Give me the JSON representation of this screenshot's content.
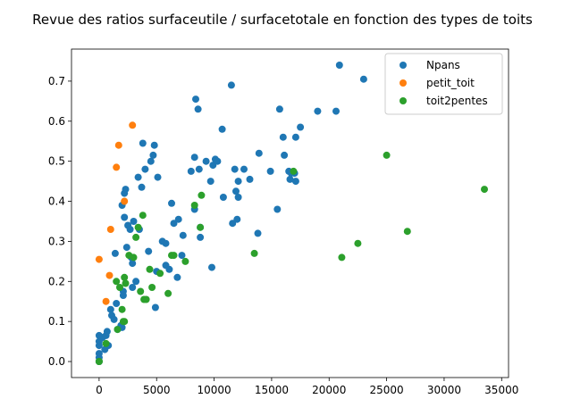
{
  "chart_data": {
    "type": "scatter",
    "title": "Revue des ratios surfaceutile / surfacetotale en fonction des types de toits",
    "xlabel": "",
    "ylabel": "",
    "xlim": [
      -2400,
      35600
    ],
    "ylim": [
      -0.04,
      0.78
    ],
    "x_ticks": [
      0,
      5000,
      10000,
      15000,
      20000,
      25000,
      30000,
      35000
    ],
    "y_ticks": [
      0.0,
      0.1,
      0.2,
      0.3,
      0.4,
      0.5,
      0.6,
      0.7
    ],
    "x_tick_labels": [
      "0",
      "5000",
      "10000",
      "15000",
      "20000",
      "25000",
      "30000",
      "35000"
    ],
    "y_tick_labels": [
      "0.0",
      "0.1",
      "0.2",
      "0.3",
      "0.4",
      "0.5",
      "0.6",
      "0.7"
    ],
    "grid": false,
    "legend_position": "top-right",
    "series": [
      {
        "name": "Npans",
        "color": "#1f77b4",
        "points": [
          [
            0,
            0.0
          ],
          [
            0,
            0.0
          ],
          [
            0,
            0.01
          ],
          [
            0,
            0.02
          ],
          [
            0,
            0.04
          ],
          [
            0,
            0.05
          ],
          [
            0,
            0.065
          ],
          [
            300,
            0.06
          ],
          [
            500,
            0.03
          ],
          [
            600,
            0.065
          ],
          [
            700,
            0.075
          ],
          [
            800,
            0.04
          ],
          [
            1000,
            0.13
          ],
          [
            1100,
            0.115
          ],
          [
            1300,
            0.105
          ],
          [
            1400,
            0.27
          ],
          [
            1500,
            0.145
          ],
          [
            1600,
            0.08
          ],
          [
            1900,
            0.09
          ],
          [
            2000,
            0.085
          ],
          [
            2000,
            0.39
          ],
          [
            2100,
            0.175
          ],
          [
            2100,
            0.165
          ],
          [
            2200,
            0.42
          ],
          [
            2200,
            0.36
          ],
          [
            2300,
            0.43
          ],
          [
            2400,
            0.285
          ],
          [
            2500,
            0.34
          ],
          [
            2700,
            0.33
          ],
          [
            2800,
            0.26
          ],
          [
            2900,
            0.245
          ],
          [
            2900,
            0.185
          ],
          [
            3000,
            0.35
          ],
          [
            3200,
            0.2
          ],
          [
            3400,
            0.46
          ],
          [
            3500,
            0.33
          ],
          [
            3700,
            0.435
          ],
          [
            3800,
            0.545
          ],
          [
            4000,
            0.48
          ],
          [
            4300,
            0.275
          ],
          [
            4500,
            0.5
          ],
          [
            4700,
            0.515
          ],
          [
            4800,
            0.54
          ],
          [
            4900,
            0.135
          ],
          [
            5000,
            0.225
          ],
          [
            5100,
            0.46
          ],
          [
            5500,
            0.3
          ],
          [
            5800,
            0.295
          ],
          [
            5800,
            0.24
          ],
          [
            6100,
            0.23
          ],
          [
            6300,
            0.395
          ],
          [
            6500,
            0.345
          ],
          [
            6800,
            0.21
          ],
          [
            6900,
            0.355
          ],
          [
            7200,
            0.265
          ],
          [
            7300,
            0.315
          ],
          [
            8000,
            0.475
          ],
          [
            8300,
            0.51
          ],
          [
            8300,
            0.38
          ],
          [
            8400,
            0.655
          ],
          [
            8600,
            0.63
          ],
          [
            8700,
            0.48
          ],
          [
            8800,
            0.31
          ],
          [
            8800,
            0.335
          ],
          [
            9300,
            0.5
          ],
          [
            9700,
            0.45
          ],
          [
            9800,
            0.235
          ],
          [
            9900,
            0.49
          ],
          [
            10100,
            0.505
          ],
          [
            10300,
            0.5
          ],
          [
            10700,
            0.58
          ],
          [
            10800,
            0.41
          ],
          [
            11500,
            0.69
          ],
          [
            11600,
            0.345
          ],
          [
            11800,
            0.48
          ],
          [
            11900,
            0.425
          ],
          [
            12000,
            0.355
          ],
          [
            12100,
            0.45
          ],
          [
            12100,
            0.41
          ],
          [
            12600,
            0.48
          ],
          [
            13100,
            0.455
          ],
          [
            13800,
            0.32
          ],
          [
            13900,
            0.52
          ],
          [
            14900,
            0.475
          ],
          [
            15500,
            0.38
          ],
          [
            15700,
            0.63
          ],
          [
            16000,
            0.56
          ],
          [
            16100,
            0.515
          ],
          [
            16500,
            0.475
          ],
          [
            16600,
            0.455
          ],
          [
            16700,
            0.47
          ],
          [
            17000,
            0.47
          ],
          [
            17100,
            0.45
          ],
          [
            17100,
            0.56
          ],
          [
            17500,
            0.585
          ],
          [
            19000,
            0.625
          ],
          [
            20600,
            0.625
          ],
          [
            20900,
            0.74
          ],
          [
            23000,
            0.705
          ]
        ]
      },
      {
        "name": "petit_toit",
        "color": "#ff7f0e",
        "points": [
          [
            0,
            0.255
          ],
          [
            600,
            0.15
          ],
          [
            900,
            0.215
          ],
          [
            1000,
            0.33
          ],
          [
            1500,
            0.485
          ],
          [
            1700,
            0.54
          ],
          [
            2200,
            0.4
          ],
          [
            2900,
            0.59
          ]
        ]
      },
      {
        "name": "toit2pentes",
        "color": "#2ca02c",
        "points": [
          [
            0,
            0.0
          ],
          [
            0,
            0.0
          ],
          [
            600,
            0.045
          ],
          [
            1500,
            0.2
          ],
          [
            1600,
            0.08
          ],
          [
            1800,
            0.185
          ],
          [
            2000,
            0.13
          ],
          [
            2100,
            0.1
          ],
          [
            2200,
            0.21
          ],
          [
            2200,
            0.1
          ],
          [
            2300,
            0.195
          ],
          [
            2600,
            0.265
          ],
          [
            3000,
            0.26
          ],
          [
            3200,
            0.31
          ],
          [
            3400,
            0.335
          ],
          [
            3600,
            0.175
          ],
          [
            3800,
            0.365
          ],
          [
            3900,
            0.155
          ],
          [
            4100,
            0.155
          ],
          [
            4400,
            0.23
          ],
          [
            4600,
            0.185
          ],
          [
            5300,
            0.22
          ],
          [
            6000,
            0.17
          ],
          [
            6300,
            0.265
          ],
          [
            6500,
            0.265
          ],
          [
            7500,
            0.25
          ],
          [
            8300,
            0.39
          ],
          [
            8800,
            0.335
          ],
          [
            8900,
            0.415
          ],
          [
            13500,
            0.27
          ],
          [
            16900,
            0.475
          ],
          [
            21100,
            0.26
          ],
          [
            22500,
            0.295
          ],
          [
            25000,
            0.515
          ],
          [
            26800,
            0.325
          ],
          [
            33500,
            0.43
          ]
        ]
      }
    ]
  }
}
